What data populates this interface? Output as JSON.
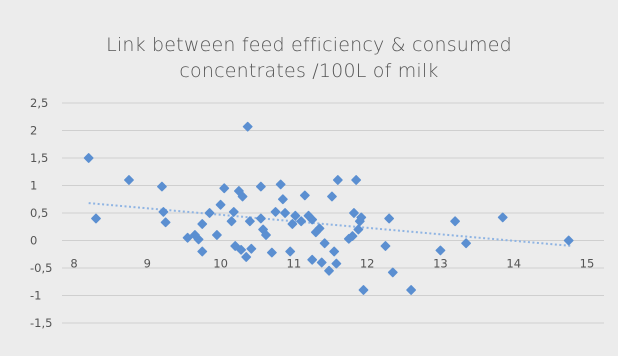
{
  "chart_data": {
    "type": "scatter",
    "title_lines": [
      "Link between feed efficiency & consumed",
      "concentrates /100L of milk"
    ],
    "xlabel": "",
    "ylabel": "",
    "xlim": [
      8,
      15
    ],
    "ylim": [
      -1.5,
      2.5
    ],
    "x_ticks": [
      "8",
      "9",
      "10",
      "11",
      "12",
      "13",
      "14",
      "15"
    ],
    "y_ticks": [
      "2,5",
      "2",
      "1,5",
      "1",
      "0,5",
      "0",
      "-0,5",
      "-1",
      "-1,5"
    ],
    "grid": "horizontal",
    "legend": "none",
    "trendline": {
      "type": "linear",
      "x": [
        8.2,
        14.8
      ],
      "y": [
        0.68,
        -0.1
      ]
    },
    "points": [
      {
        "x": 8.2,
        "y": 1.5
      },
      {
        "x": 8.3,
        "y": 0.4
      },
      {
        "x": 8.75,
        "y": 1.1
      },
      {
        "x": 9.2,
        "y": 0.98
      },
      {
        "x": 9.22,
        "y": 0.52
      },
      {
        "x": 9.25,
        "y": 0.33
      },
      {
        "x": 9.55,
        "y": 0.05
      },
      {
        "x": 9.65,
        "y": 0.1
      },
      {
        "x": 9.7,
        "y": 0.02
      },
      {
        "x": 9.75,
        "y": 0.3
      },
      {
        "x": 9.75,
        "y": -0.2
      },
      {
        "x": 9.85,
        "y": 0.5
      },
      {
        "x": 9.95,
        "y": 0.1
      },
      {
        "x": 10.0,
        "y": 0.65
      },
      {
        "x": 10.05,
        "y": 0.95
      },
      {
        "x": 10.15,
        "y": 0.35
      },
      {
        "x": 10.18,
        "y": 0.52
      },
      {
        "x": 10.2,
        "y": -0.1
      },
      {
        "x": 10.25,
        "y": 0.9
      },
      {
        "x": 10.28,
        "y": -0.17
      },
      {
        "x": 10.3,
        "y": 0.8
      },
      {
        "x": 10.35,
        "y": -0.3
      },
      {
        "x": 10.37,
        "y": 2.07
      },
      {
        "x": 10.4,
        "y": 0.35
      },
      {
        "x": 10.42,
        "y": -0.15
      },
      {
        "x": 10.55,
        "y": 0.98
      },
      {
        "x": 10.55,
        "y": 0.4
      },
      {
        "x": 10.58,
        "y": 0.2
      },
      {
        "x": 10.62,
        "y": 0.1
      },
      {
        "x": 10.7,
        "y": -0.22
      },
      {
        "x": 10.75,
        "y": 0.52
      },
      {
        "x": 10.82,
        "y": 1.02
      },
      {
        "x": 10.85,
        "y": 0.75
      },
      {
        "x": 10.88,
        "y": 0.5
      },
      {
        "x": 10.95,
        "y": -0.2
      },
      {
        "x": 10.98,
        "y": 0.3
      },
      {
        "x": 11.02,
        "y": 0.45
      },
      {
        "x": 11.1,
        "y": 0.35
      },
      {
        "x": 11.15,
        "y": 0.82
      },
      {
        "x": 11.2,
        "y": 0.45
      },
      {
        "x": 11.25,
        "y": 0.38
      },
      {
        "x": 11.25,
        "y": -0.35
      },
      {
        "x": 11.3,
        "y": 0.15
      },
      {
        "x": 11.35,
        "y": 0.22
      },
      {
        "x": 11.38,
        "y": -0.4
      },
      {
        "x": 11.42,
        "y": -0.05
      },
      {
        "x": 11.48,
        "y": -0.55
      },
      {
        "x": 11.52,
        "y": 0.8
      },
      {
        "x": 11.55,
        "y": -0.2
      },
      {
        "x": 11.58,
        "y": -0.42
      },
      {
        "x": 11.6,
        "y": 1.1
      },
      {
        "x": 11.75,
        "y": 0.03
      },
      {
        "x": 11.8,
        "y": 0.08
      },
      {
        "x": 11.82,
        "y": 0.5
      },
      {
        "x": 11.85,
        "y": 1.1
      },
      {
        "x": 11.88,
        "y": 0.2
      },
      {
        "x": 11.9,
        "y": 0.35
      },
      {
        "x": 11.92,
        "y": 0.42
      },
      {
        "x": 11.95,
        "y": -0.9
      },
      {
        "x": 12.25,
        "y": -0.1
      },
      {
        "x": 12.3,
        "y": 0.4
      },
      {
        "x": 12.35,
        "y": -0.58
      },
      {
        "x": 12.6,
        "y": -0.9
      },
      {
        "x": 13.0,
        "y": -0.18
      },
      {
        "x": 13.2,
        "y": 0.35
      },
      {
        "x": 13.35,
        "y": -0.05
      },
      {
        "x": 13.85,
        "y": 0.42
      },
      {
        "x": 14.75,
        "y": 0.0
      }
    ],
    "colors": {
      "points": "#5b8fd1",
      "trendline": "#8fb4e3",
      "grid": "#cfcfcf",
      "background": "#ececec",
      "text": "#555555"
    }
  }
}
